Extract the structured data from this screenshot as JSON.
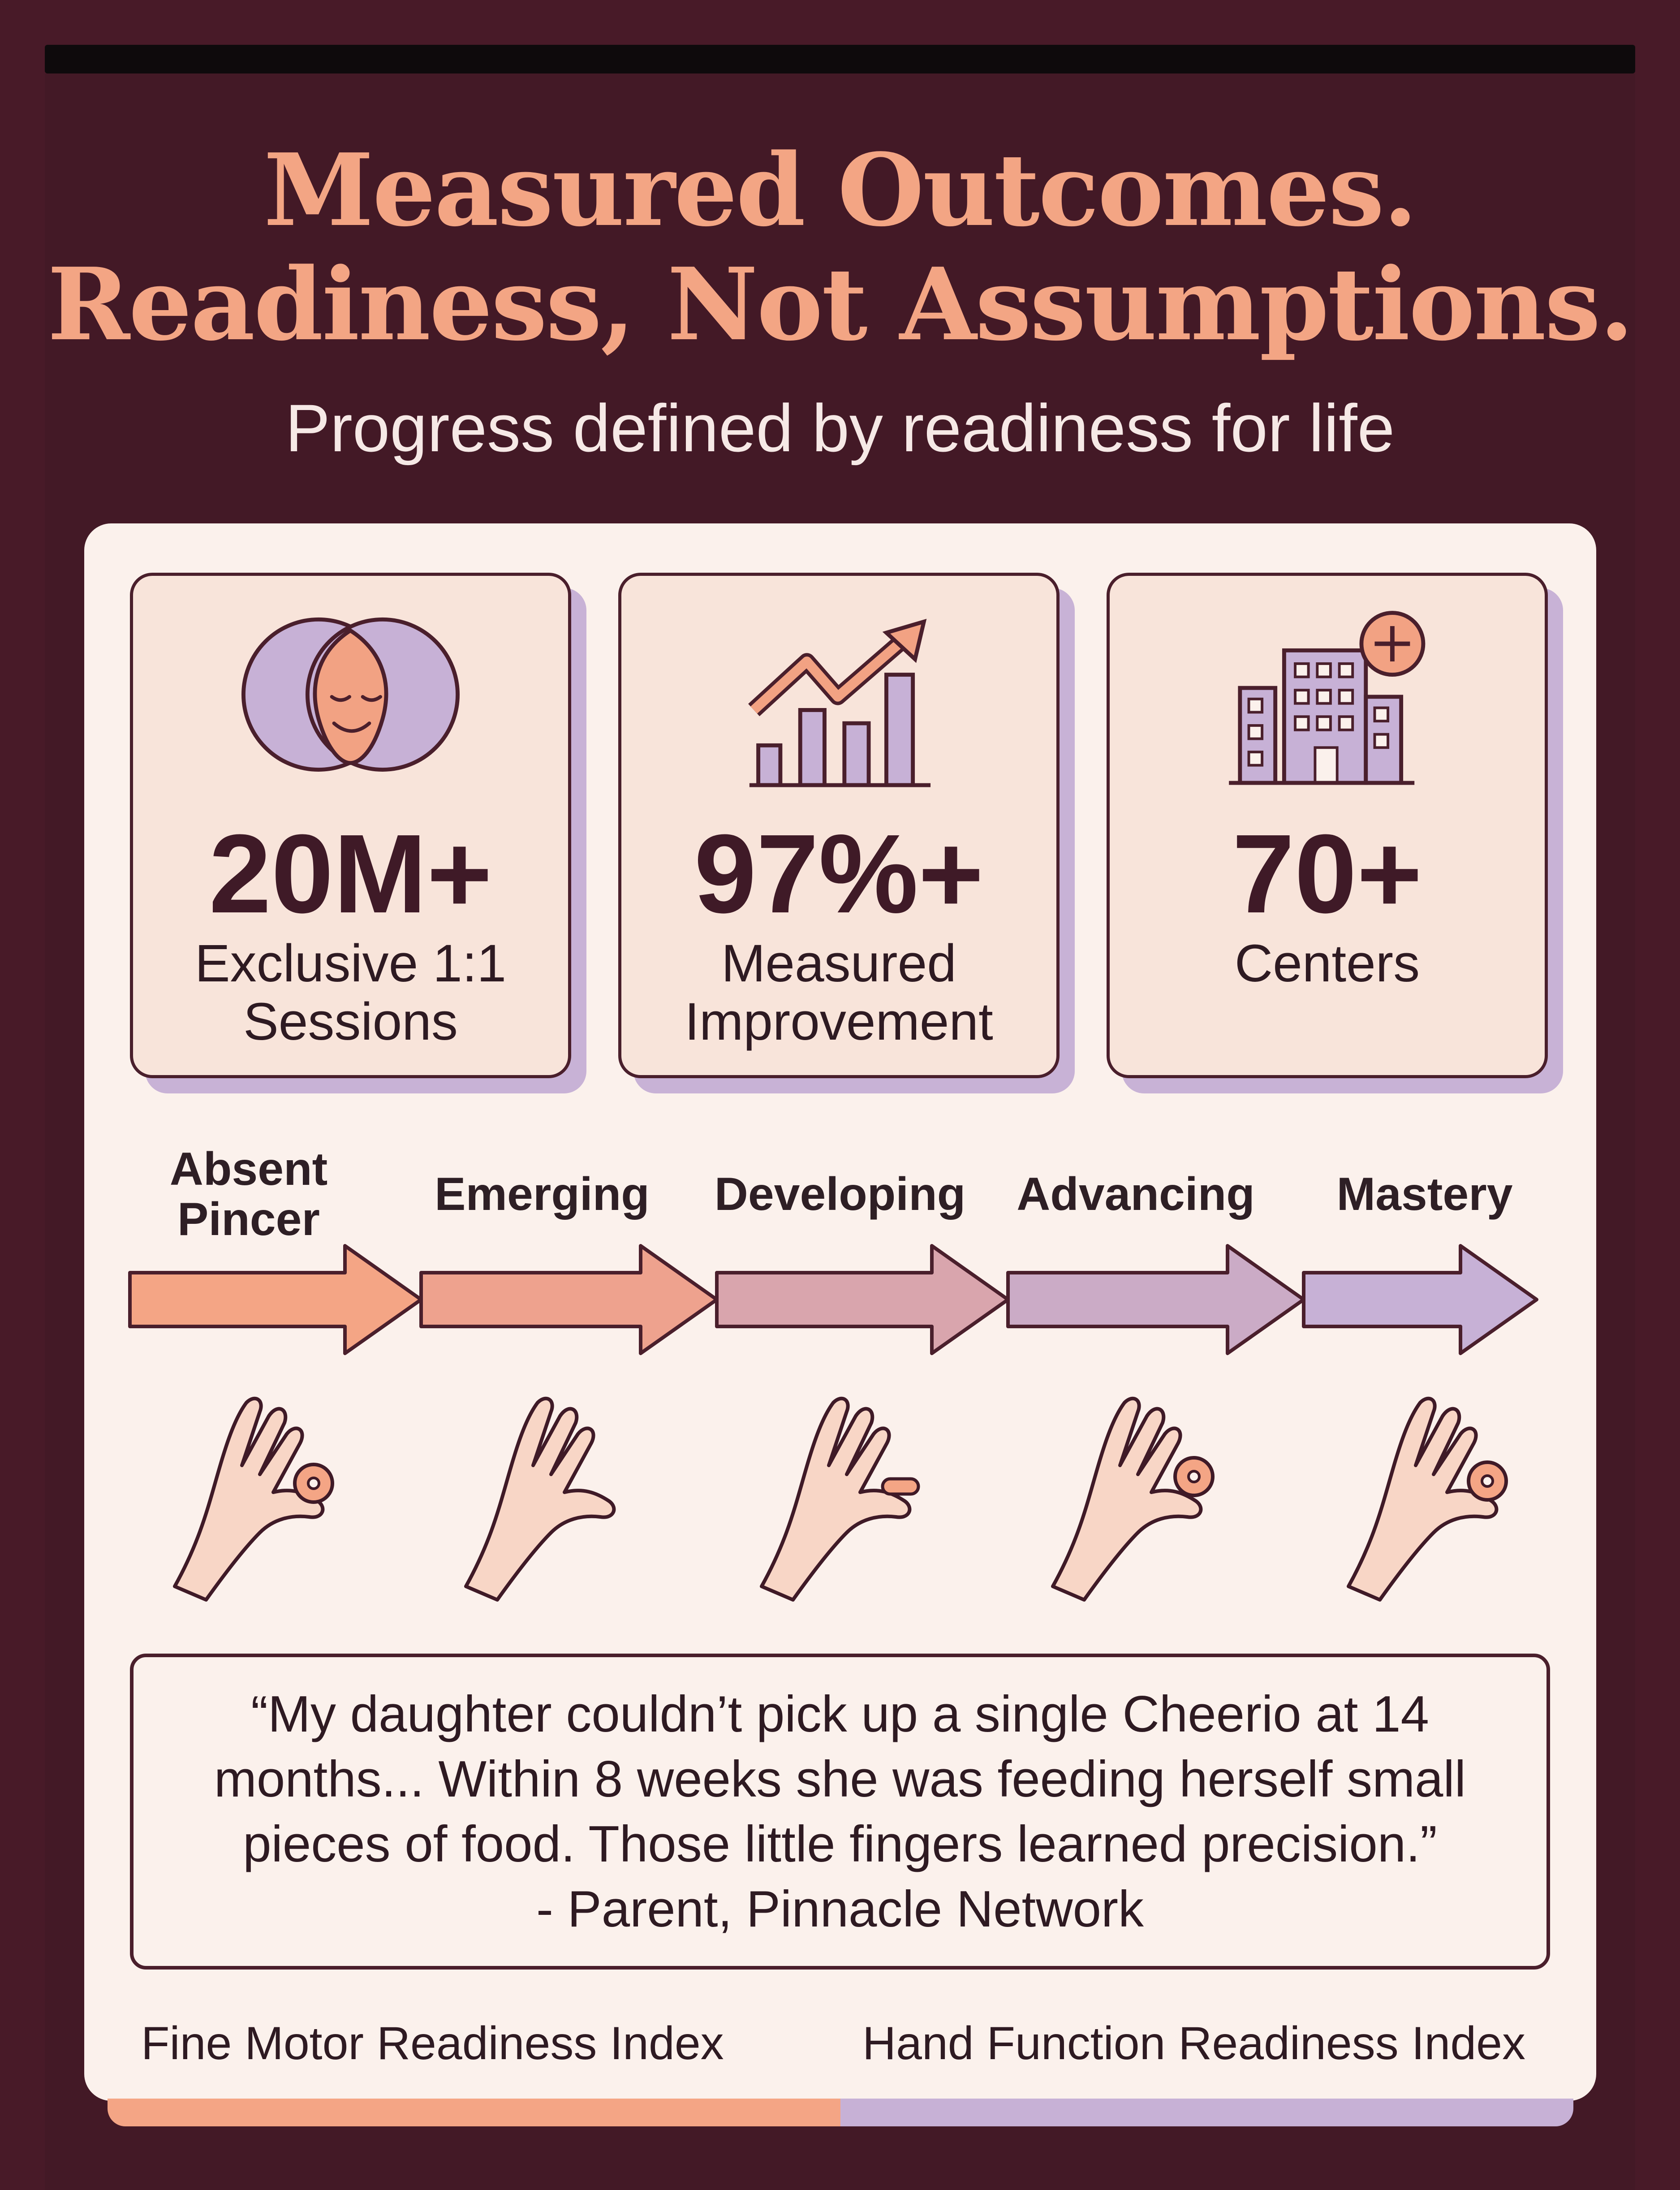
{
  "header": {
    "title_line1": "Measured Outcomes.",
    "title_line2": "Readiness, Not Assumptions.",
    "subtitle": "Progress defined by readiness for life"
  },
  "stats": [
    {
      "value": "20M+",
      "label_line1": "Exclusive 1:1",
      "label_line2": "Sessions",
      "icon": "face-venn-icon"
    },
    {
      "value": "97%+",
      "label_line1": "Measured",
      "label_line2": "Improvement",
      "icon": "growth-chart-icon"
    },
    {
      "value": "70+",
      "label_line1": "Centers",
      "label_line2": "",
      "icon": "hospital-building-icon"
    }
  ],
  "stages": [
    {
      "label_line1": "Absent",
      "label_line2": "Pincer"
    },
    {
      "label_line1": "Emerging",
      "label_line2": ""
    },
    {
      "label_line1": "Developing",
      "label_line2": ""
    },
    {
      "label_line1": "Advancing",
      "label_line2": ""
    },
    {
      "label_line1": "Mastery",
      "label_line2": ""
    }
  ],
  "testimonial": {
    "quote": "“My daughter couldn’t pick up a single Cheerio at 14 months... Within 8 weeks she was feeding herself small pieces of food. Those little fingers learned precision.”",
    "attribution": "- Parent, Pinnacle Network"
  },
  "indices": {
    "left": "Fine Motor Readiness Index",
    "right": "Hand Function Readiness Index"
  },
  "colors": {
    "background": "#481a28",
    "title": "#f3a584",
    "card": "#fbf1ec",
    "peach": "#f4a585",
    "lavender": "#c7b1d6",
    "outline": "#4a1f2c"
  }
}
